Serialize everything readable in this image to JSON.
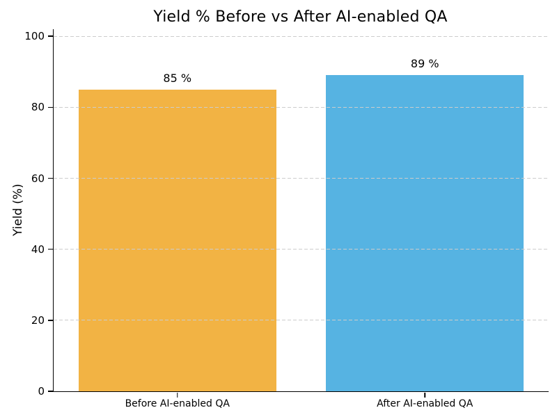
{
  "chart_data": {
    "type": "bar",
    "title": "Yield % Before vs After AI-enabled QA",
    "xlabel": "",
    "ylabel": "Yield (%)",
    "categories": [
      "Before AI-enabled QA",
      "After AI-enabled QA"
    ],
    "values": [
      85,
      89
    ],
    "value_labels": [
      "85 %",
      "89 %"
    ],
    "bar_colors": [
      "#F2B344",
      "#56B3E2"
    ],
    "yticks": [
      0,
      20,
      40,
      60,
      80,
      100
    ],
    "ylim": [
      0,
      102
    ],
    "bar_width_fraction": 0.8,
    "grid": "horizontal-dashed",
    "grid_color": "#cccccc",
    "background_color": "#ffffff",
    "text_color": "#000000",
    "legend": "none"
  }
}
